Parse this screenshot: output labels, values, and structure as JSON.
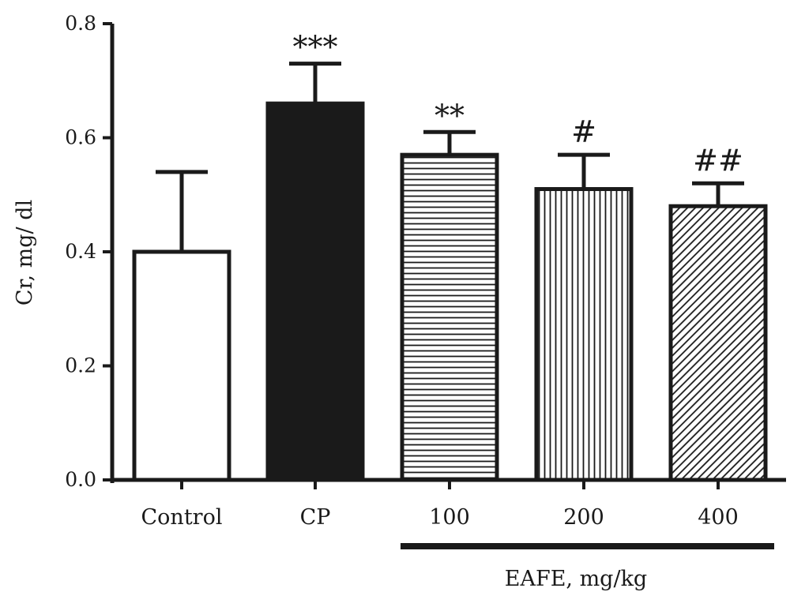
{
  "chart_data": {
    "type": "bar",
    "ylabel": "Cr, mg/ dl",
    "ylim": [
      0,
      0.8
    ],
    "yticks": [
      0.0,
      0.2,
      0.4,
      0.6,
      0.8
    ],
    "ytick_labels": [
      "0.0",
      "0.2",
      "0.4",
      "0.6",
      "0.8"
    ],
    "categories": [
      "Control",
      "CP",
      "100",
      "200",
      "400"
    ],
    "values": [
      0.4,
      0.66,
      0.57,
      0.51,
      0.48
    ],
    "errors": [
      0.14,
      0.07,
      0.04,
      0.06,
      0.04
    ],
    "significance": [
      "",
      "***",
      "**",
      "#",
      "##"
    ],
    "patterns": [
      "none",
      "solid",
      "horizontal",
      "vertical",
      "diagonal"
    ],
    "group": {
      "label": "EAFE, mg/kg",
      "from_index": 2,
      "to_index": 4
    },
    "colors": {
      "ink": "#1a1a1a",
      "fill": "#ffffff"
    }
  }
}
